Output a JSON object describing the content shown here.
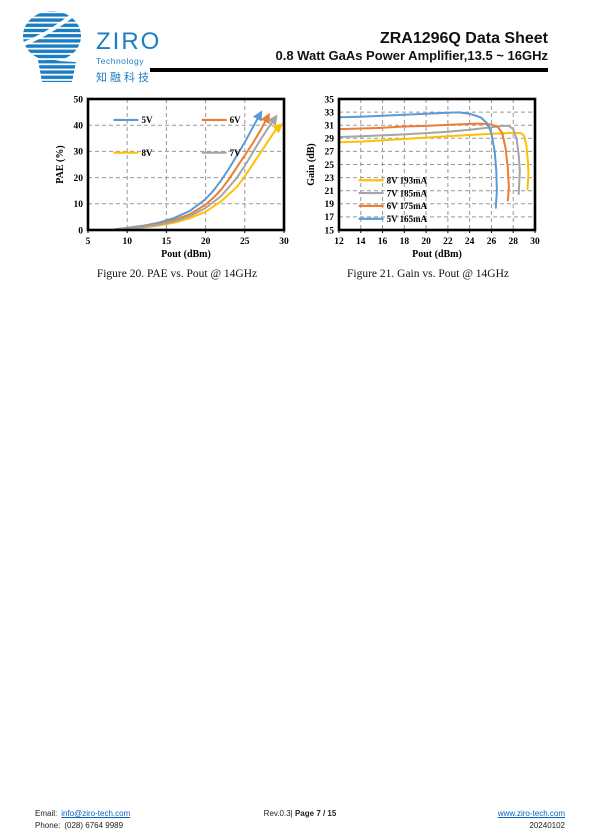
{
  "header": {
    "logo": {
      "brand": "ZIRO",
      "sub": "Technology",
      "cn": "知融科技"
    },
    "title": "ZRA1296Q Data Sheet",
    "subtitle": "0.8 Watt GaAs Power Amplifier,13.5 ~ 16GHz"
  },
  "figures": [
    {
      "caption": "Figure 20. PAE vs. Pout @ 14GHz"
    },
    {
      "caption": "Figure 21. Gain vs. Pout @ 14GHz"
    }
  ],
  "footer": {
    "email_label": "Email:",
    "email": "info@ziro-tech.com",
    "phone_label": "Phone:",
    "phone": "(028) 6764 9989",
    "rev": "Rev.0.3|",
    "page": "Page 7 / 15",
    "website": "www.ziro-tech.com",
    "date": "20240102"
  },
  "colors": {
    "brand_blue": "#1b7ec2",
    "link_blue": "#0563c1",
    "v5_blue": "#5B9BD5",
    "v6_orange": "#ED7D31",
    "v7_gray": "#A5A5A5",
    "v8_yellow": "#FFC000"
  },
  "chart_data": [
    {
      "type": "line",
      "title": "",
      "xlabel": "Pout (dBm)",
      "ylabel": "PAE (%)",
      "xlim": [
        5,
        30
      ],
      "ylim": [
        0,
        50
      ],
      "xticks": [
        5,
        10,
        15,
        20,
        25,
        30
      ],
      "yticks": [
        0,
        10,
        20,
        30,
        40,
        50
      ],
      "grid": true,
      "arrows": true,
      "legend": {
        "style": "grid",
        "cols": 2,
        "fx": 0.13,
        "fy": 0.16,
        "fcw": 0.45,
        "frh": 0.25
      },
      "series": [
        {
          "name": "5V",
          "color": "#5B9BD5",
          "points": [
            [
              8.5,
              0.3
            ],
            [
              10,
              0.8
            ],
            [
              12,
              1.6
            ],
            [
              14,
              2.8
            ],
            [
              16,
              4.6
            ],
            [
              18,
              7.3
            ],
            [
              20,
              11.8
            ],
            [
              21,
              15
            ],
            [
              22,
              19
            ],
            [
              23,
              23.5
            ],
            [
              24,
              28.5
            ],
            [
              25,
              33.5
            ],
            [
              26,
              39
            ],
            [
              26.9,
              44
            ]
          ]
        },
        {
          "name": "6V",
          "color": "#ED7D31",
          "points": [
            [
              8.5,
              0.2
            ],
            [
              10,
              0.6
            ],
            [
              12,
              1.3
            ],
            [
              14,
              2.3
            ],
            [
              16,
              3.8
            ],
            [
              18,
              6
            ],
            [
              20,
              9.7
            ],
            [
              21,
              12.3
            ],
            [
              22,
              15.5
            ],
            [
              23,
              19.5
            ],
            [
              24,
              24
            ],
            [
              25,
              28.5
            ],
            [
              26,
              33
            ],
            [
              27,
              38
            ],
            [
              27.9,
              43
            ]
          ]
        },
        {
          "name": "8V",
          "color": "#FFC000",
          "points": [
            [
              8.7,
              0.1
            ],
            [
              10,
              0.4
            ],
            [
              12,
              0.9
            ],
            [
              14,
              1.7
            ],
            [
              16,
              2.8
            ],
            [
              18,
              4.5
            ],
            [
              20,
              7
            ],
            [
              22,
              11
            ],
            [
              24,
              16.5
            ],
            [
              25,
              20.5
            ],
            [
              26,
              25
            ],
            [
              27,
              29.5
            ],
            [
              28,
              34
            ],
            [
              29,
              38.5
            ],
            [
              29.4,
              39.5
            ]
          ]
        },
        {
          "name": "7V",
          "color": "#A5A5A5",
          "points": [
            [
              8.5,
              0.2
            ],
            [
              10,
              0.5
            ],
            [
              12,
              1.1
            ],
            [
              14,
              2
            ],
            [
              16,
              3.3
            ],
            [
              18,
              5.3
            ],
            [
              20,
              8.4
            ],
            [
              22,
              13
            ],
            [
              24,
              20
            ],
            [
              25,
              24.5
            ],
            [
              26,
              29.5
            ],
            [
              27,
              34.5
            ],
            [
              28,
              39
            ],
            [
              28.8,
              42.5
            ]
          ]
        }
      ]
    },
    {
      "type": "line",
      "title": "",
      "xlabel": "Pout (dBm)",
      "ylabel": "Gain (dB)",
      "xlim": [
        12,
        30
      ],
      "ylim": [
        15,
        35
      ],
      "xticks": [
        12,
        14,
        16,
        18,
        20,
        22,
        24,
        26,
        28,
        30
      ],
      "yticks": [
        15,
        17,
        19,
        21,
        23,
        25,
        27,
        29,
        31,
        33,
        35
      ],
      "grid": true,
      "arrows": false,
      "legend": {
        "style": "list",
        "fx": 0.1,
        "fy": 0.62,
        "frh": 0.098
      },
      "series": [
        {
          "name": "8V 193mA",
          "color": "#FFC000",
          "points": [
            [
              12,
              28.4
            ],
            [
              14,
              28.5
            ],
            [
              16,
              28.7
            ],
            [
              18,
              28.9
            ],
            [
              20,
              29.1
            ],
            [
              22,
              29.3
            ],
            [
              24,
              29.5
            ],
            [
              26,
              29.7
            ],
            [
              27,
              29.75
            ],
            [
              28,
              29.85
            ],
            [
              28.7,
              29.8
            ],
            [
              29,
              29.4
            ],
            [
              29.2,
              28
            ],
            [
              29.35,
              25.5
            ],
            [
              29.4,
              23.5
            ],
            [
              29.3,
              21.2
            ]
          ]
        },
        {
          "name": "7V 185mA",
          "color": "#A5A5A5",
          "points": [
            [
              12,
              29.2
            ],
            [
              14,
              29.3
            ],
            [
              16,
              29.45
            ],
            [
              18,
              29.6
            ],
            [
              20,
              29.8
            ],
            [
              22,
              30.0
            ],
            [
              24,
              30.3
            ],
            [
              26,
              30.7
            ],
            [
              27,
              30.9
            ],
            [
              27.6,
              30.9
            ],
            [
              28,
              30.4
            ],
            [
              28.3,
              29
            ],
            [
              28.5,
              26.5
            ],
            [
              28.6,
              24
            ],
            [
              28.5,
              20.5
            ]
          ]
        },
        {
          "name": "6V 175mA",
          "color": "#ED7D31",
          "points": [
            [
              12,
              30.4
            ],
            [
              14,
              30.5
            ],
            [
              16,
              30.6
            ],
            [
              18,
              30.8
            ],
            [
              20,
              30.9
            ],
            [
              22,
              31.05
            ],
            [
              24,
              31.2
            ],
            [
              25,
              31.25
            ],
            [
              26,
              31.1
            ],
            [
              26.6,
              30.7
            ],
            [
              27,
              29.8
            ],
            [
              27.3,
              27.5
            ],
            [
              27.5,
              24.5
            ],
            [
              27.6,
              21.5
            ],
            [
              27.5,
              19.5
            ]
          ]
        },
        {
          "name": "5V 165mA",
          "color": "#5B9BD5",
          "points": [
            [
              12,
              32.2
            ],
            [
              14,
              32.3
            ],
            [
              16,
              32.45
            ],
            [
              18,
              32.6
            ],
            [
              20,
              32.75
            ],
            [
              22,
              32.9
            ],
            [
              23,
              32.95
            ],
            [
              24,
              32.75
            ],
            [
              25,
              32.2
            ],
            [
              25.6,
              31.3
            ],
            [
              26,
              29.8
            ],
            [
              26.3,
              27
            ],
            [
              26.45,
              24
            ],
            [
              26.5,
              21
            ],
            [
              26.4,
              18.4
            ]
          ]
        }
      ]
    }
  ]
}
